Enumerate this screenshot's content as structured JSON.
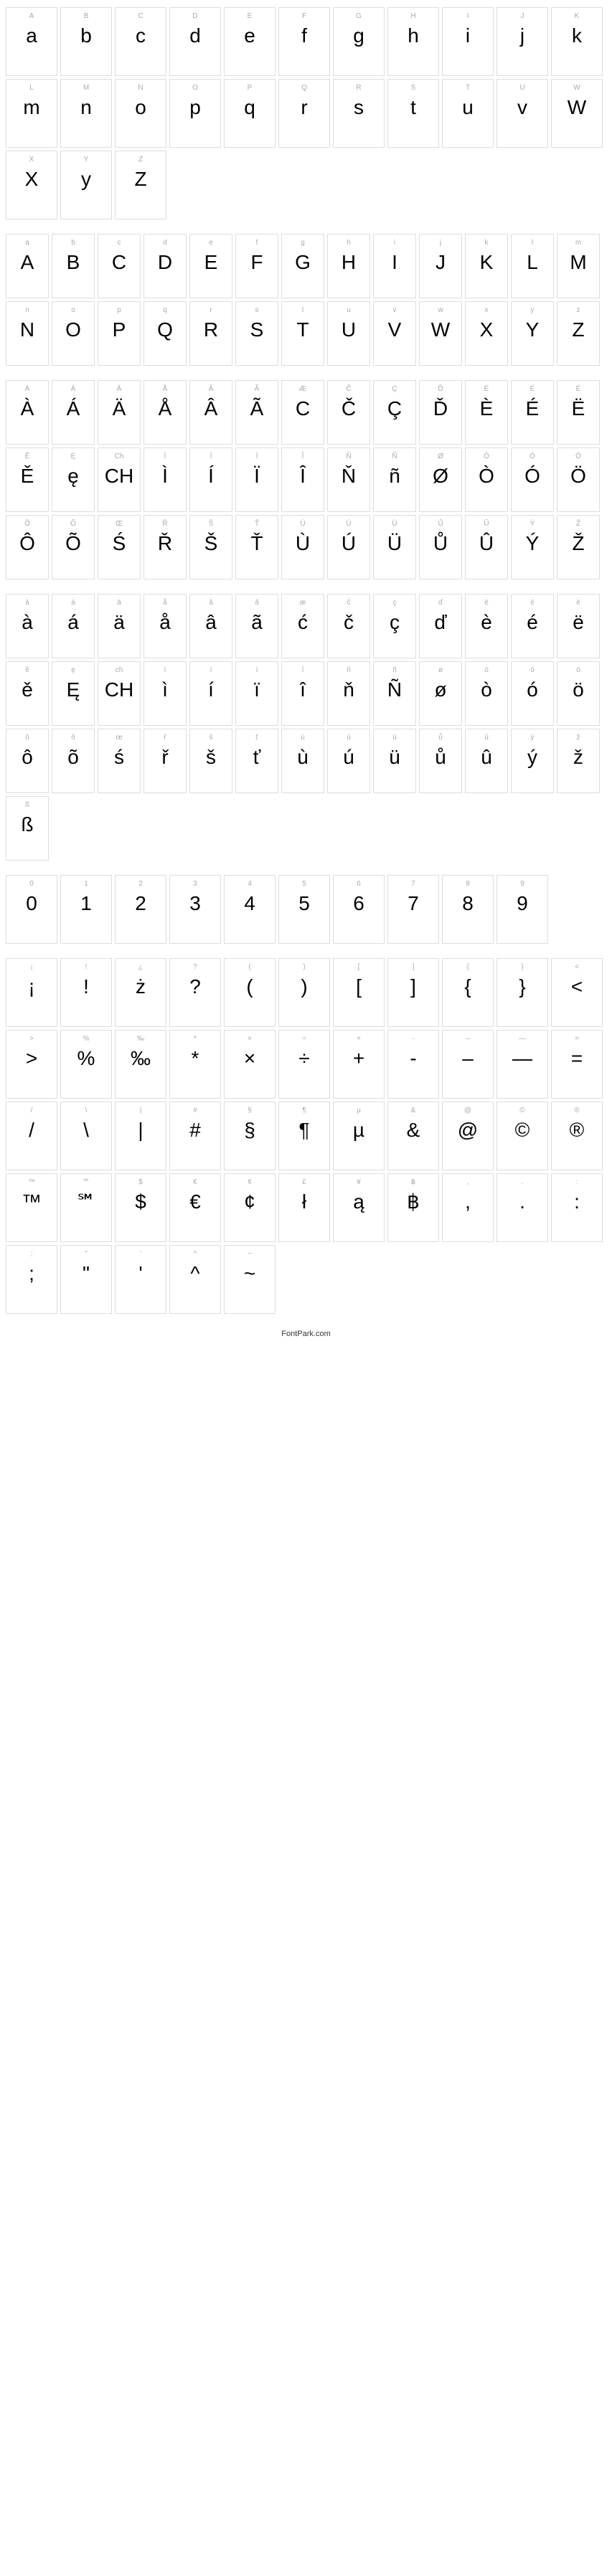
{
  "footer": "FontPark.com",
  "cell_width_wide": 72,
  "cell_height_wide": 96,
  "cell_width_narrow": 60,
  "cell_height_narrow": 90,
  "sections": [
    {
      "style": "wide",
      "cells": [
        {
          "label": "A",
          "glyph": "a"
        },
        {
          "label": "B",
          "glyph": "b"
        },
        {
          "label": "C",
          "glyph": "c"
        },
        {
          "label": "D",
          "glyph": "d"
        },
        {
          "label": "E",
          "glyph": "e"
        },
        {
          "label": "F",
          "glyph": "f"
        },
        {
          "label": "G",
          "glyph": "g"
        },
        {
          "label": "H",
          "glyph": "h"
        },
        {
          "label": "I",
          "glyph": "i"
        },
        {
          "label": "J",
          "glyph": "j"
        },
        {
          "label": "K",
          "glyph": "k"
        },
        {
          "label": "L",
          "glyph": "m"
        },
        {
          "label": "M",
          "glyph": "n"
        },
        {
          "label": "N",
          "glyph": "o"
        },
        {
          "label": "O",
          "glyph": "p"
        },
        {
          "label": "P",
          "glyph": "q"
        },
        {
          "label": "Q",
          "glyph": "r"
        },
        {
          "label": "R",
          "glyph": "s"
        },
        {
          "label": "S",
          "glyph": "t"
        },
        {
          "label": "T",
          "glyph": "u"
        },
        {
          "label": "U",
          "glyph": "v"
        },
        {
          "label": "W",
          "glyph": "W"
        },
        {
          "label": "X",
          "glyph": "X"
        },
        {
          "label": "Y",
          "glyph": "y"
        },
        {
          "label": "Z",
          "glyph": "Z"
        }
      ]
    },
    {
      "style": "narrow",
      "cells": [
        {
          "label": "a",
          "glyph": "A"
        },
        {
          "label": "b",
          "glyph": "B"
        },
        {
          "label": "c",
          "glyph": "C"
        },
        {
          "label": "d",
          "glyph": "D"
        },
        {
          "label": "e",
          "glyph": "E"
        },
        {
          "label": "f",
          "glyph": "F"
        },
        {
          "label": "g",
          "glyph": "G"
        },
        {
          "label": "h",
          "glyph": "H"
        },
        {
          "label": "i",
          "glyph": "I"
        },
        {
          "label": "j",
          "glyph": "J"
        },
        {
          "label": "k",
          "glyph": "K"
        },
        {
          "label": "l",
          "glyph": "L"
        },
        {
          "label": "m",
          "glyph": "M"
        },
        {
          "label": "n",
          "glyph": "N"
        },
        {
          "label": "o",
          "glyph": "O"
        },
        {
          "label": "p",
          "glyph": "P"
        },
        {
          "label": "q",
          "glyph": "Q"
        },
        {
          "label": "r",
          "glyph": "R"
        },
        {
          "label": "s",
          "glyph": "S"
        },
        {
          "label": "t",
          "glyph": "T"
        },
        {
          "label": "u",
          "glyph": "U"
        },
        {
          "label": "v",
          "glyph": "V"
        },
        {
          "label": "w",
          "glyph": "W"
        },
        {
          "label": "x",
          "glyph": "X"
        },
        {
          "label": "y",
          "glyph": "Y"
        },
        {
          "label": "z",
          "glyph": "Z"
        }
      ]
    },
    {
      "style": "narrow",
      "cells": [
        {
          "label": "À",
          "glyph": "À"
        },
        {
          "label": "Á",
          "glyph": "Á"
        },
        {
          "label": "Ä",
          "glyph": "Ä"
        },
        {
          "label": "Å",
          "glyph": "Å"
        },
        {
          "label": "Â",
          "glyph": "Â"
        },
        {
          "label": "Ã",
          "glyph": "Ã"
        },
        {
          "label": "Æ",
          "glyph": "C"
        },
        {
          "label": "Č",
          "glyph": "Č"
        },
        {
          "label": "Ç",
          "glyph": "Ç"
        },
        {
          "label": "Ď",
          "glyph": "Ď"
        },
        {
          "label": "È",
          "glyph": "È"
        },
        {
          "label": "É",
          "glyph": "É"
        },
        {
          "label": "Ë",
          "glyph": "Ë"
        },
        {
          "label": "Ě",
          "glyph": "Ě"
        },
        {
          "label": "Ę",
          "glyph": "ę"
        },
        {
          "label": "Ch",
          "glyph": "CH"
        },
        {
          "label": "Ì",
          "glyph": "Ì"
        },
        {
          "label": "Í",
          "glyph": "Í"
        },
        {
          "label": "Ï",
          "glyph": "Ï"
        },
        {
          "label": "Î",
          "glyph": "Î"
        },
        {
          "label": "Ň",
          "glyph": "Ň"
        },
        {
          "label": "Ñ",
          "glyph": "ñ"
        },
        {
          "label": "Ø",
          "glyph": "Ø"
        },
        {
          "label": "Ò",
          "glyph": "Ò"
        },
        {
          "label": "Ó",
          "glyph": "Ó"
        },
        {
          "label": "Ö",
          "glyph": "Ö"
        },
        {
          "label": "Ô",
          "glyph": "Ô"
        },
        {
          "label": "Õ",
          "glyph": "Õ"
        },
        {
          "label": "Œ",
          "glyph": "Ś"
        },
        {
          "label": "Ř",
          "glyph": "Ř"
        },
        {
          "label": "Š",
          "glyph": "Š"
        },
        {
          "label": "Ť",
          "glyph": "Ť"
        },
        {
          "label": "Ù",
          "glyph": "Ù"
        },
        {
          "label": "Ú",
          "glyph": "Ú"
        },
        {
          "label": "Ü",
          "glyph": "Ü"
        },
        {
          "label": "Ů",
          "glyph": "Ů"
        },
        {
          "label": "Û",
          "glyph": "Û"
        },
        {
          "label": "Ý",
          "glyph": "Ý"
        },
        {
          "label": "Ž",
          "glyph": "Ž"
        }
      ]
    },
    {
      "style": "narrow",
      "cells": [
        {
          "label": "à",
          "glyph": "à"
        },
        {
          "label": "á",
          "glyph": "á"
        },
        {
          "label": "ä",
          "glyph": "ä"
        },
        {
          "label": "å",
          "glyph": "å"
        },
        {
          "label": "â",
          "glyph": "â"
        },
        {
          "label": "ã",
          "glyph": "ã"
        },
        {
          "label": "æ",
          "glyph": "ć"
        },
        {
          "label": "č",
          "glyph": "č"
        },
        {
          "label": "ç",
          "glyph": "ç"
        },
        {
          "label": "ď",
          "glyph": "ď"
        },
        {
          "label": "è",
          "glyph": "è"
        },
        {
          "label": "é",
          "glyph": "é"
        },
        {
          "label": "ë",
          "glyph": "ë"
        },
        {
          "label": "ě",
          "glyph": "ě"
        },
        {
          "label": "ę",
          "glyph": "Ę"
        },
        {
          "label": "ch",
          "glyph": "CH"
        },
        {
          "label": "ì",
          "glyph": "ì"
        },
        {
          "label": "í",
          "glyph": "í"
        },
        {
          "label": "ï",
          "glyph": "ï"
        },
        {
          "label": "î",
          "glyph": "î"
        },
        {
          "label": "ň",
          "glyph": "ň"
        },
        {
          "label": "ñ",
          "glyph": "Ñ"
        },
        {
          "label": "ø",
          "glyph": "ø"
        },
        {
          "label": "ò",
          "glyph": "ò"
        },
        {
          "label": "ó",
          "glyph": "ó"
        },
        {
          "label": "ö",
          "glyph": "ö"
        },
        {
          "label": "ô",
          "glyph": "ô"
        },
        {
          "label": "õ",
          "glyph": "õ"
        },
        {
          "label": "œ",
          "glyph": "ś"
        },
        {
          "label": "ř",
          "glyph": "ř"
        },
        {
          "label": "š",
          "glyph": "š"
        },
        {
          "label": "ť",
          "glyph": "ť"
        },
        {
          "label": "ù",
          "glyph": "ù"
        },
        {
          "label": "ú",
          "glyph": "ú"
        },
        {
          "label": "ü",
          "glyph": "ü"
        },
        {
          "label": "ů",
          "glyph": "ů"
        },
        {
          "label": "û",
          "glyph": "û"
        },
        {
          "label": "ý",
          "glyph": "ý"
        },
        {
          "label": "ž",
          "glyph": "ž"
        },
        {
          "label": "ß",
          "glyph": "ß"
        }
      ]
    },
    {
      "style": "wide",
      "cells": [
        {
          "label": "0",
          "glyph": "0"
        },
        {
          "label": "1",
          "glyph": "1"
        },
        {
          "label": "2",
          "glyph": "2"
        },
        {
          "label": "3",
          "glyph": "3"
        },
        {
          "label": "4",
          "glyph": "4"
        },
        {
          "label": "5",
          "glyph": "5"
        },
        {
          "label": "6",
          "glyph": "6"
        },
        {
          "label": "7",
          "glyph": "7"
        },
        {
          "label": "8",
          "glyph": "8"
        },
        {
          "label": "9",
          "glyph": "9"
        }
      ]
    },
    {
      "style": "wide",
      "cells": [
        {
          "label": "¡",
          "glyph": "¡"
        },
        {
          "label": "!",
          "glyph": "!"
        },
        {
          "label": "¿",
          "glyph": "ż"
        },
        {
          "label": "?",
          "glyph": "?"
        },
        {
          "label": "(",
          "glyph": "("
        },
        {
          "label": ")",
          "glyph": ")"
        },
        {
          "label": "[",
          "glyph": "["
        },
        {
          "label": "]",
          "glyph": "]"
        },
        {
          "label": "{",
          "glyph": "{"
        },
        {
          "label": "}",
          "glyph": "}"
        },
        {
          "label": "<",
          "glyph": "<"
        },
        {
          "label": ">",
          "glyph": ">"
        },
        {
          "label": "%",
          "glyph": "%"
        },
        {
          "label": "‰",
          "glyph": "‰"
        },
        {
          "label": "*",
          "glyph": "*"
        },
        {
          "label": "×",
          "glyph": "×"
        },
        {
          "label": "÷",
          "glyph": "÷"
        },
        {
          "label": "+",
          "glyph": "+"
        },
        {
          "label": "-",
          "glyph": "-"
        },
        {
          "label": "–",
          "glyph": "–"
        },
        {
          "label": "—",
          "glyph": "—"
        },
        {
          "label": "=",
          "glyph": "="
        },
        {
          "label": "/",
          "glyph": "/"
        },
        {
          "label": "\\",
          "glyph": "\\"
        },
        {
          "label": "|",
          "glyph": "|"
        },
        {
          "label": "#",
          "glyph": "#"
        },
        {
          "label": "§",
          "glyph": "§"
        },
        {
          "label": "¶",
          "glyph": "¶"
        },
        {
          "label": "µ",
          "glyph": "µ"
        },
        {
          "label": "&",
          "glyph": "&"
        },
        {
          "label": "@",
          "glyph": "@"
        },
        {
          "label": "©",
          "glyph": "©"
        },
        {
          "label": "®",
          "glyph": "®"
        },
        {
          "label": "™",
          "glyph": "™"
        },
        {
          "label": "℠",
          "glyph": "℠"
        },
        {
          "label": "$",
          "glyph": "$"
        },
        {
          "label": "€",
          "glyph": "€"
        },
        {
          "label": "¢",
          "glyph": "¢"
        },
        {
          "label": "£",
          "glyph": "ł"
        },
        {
          "label": "¥",
          "glyph": "ą"
        },
        {
          "label": "฿",
          "glyph": "฿"
        },
        {
          "label": ",",
          "glyph": ","
        },
        {
          "label": ".",
          "glyph": "."
        },
        {
          "label": ":",
          "glyph": ":"
        },
        {
          "label": ";",
          "glyph": ";"
        },
        {
          "label": "\"",
          "glyph": "\""
        },
        {
          "label": "'",
          "glyph": "'"
        },
        {
          "label": "^",
          "glyph": "^"
        },
        {
          "label": "~",
          "glyph": "~"
        }
      ]
    }
  ]
}
